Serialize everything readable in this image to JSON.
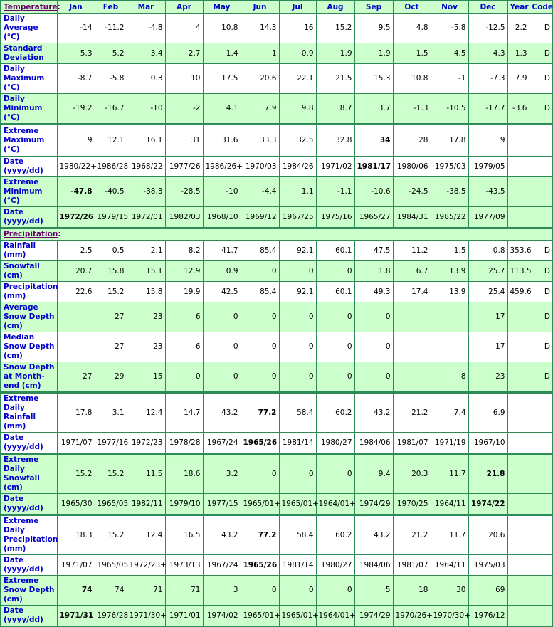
{
  "header": {
    "section_temperature": "Temperature",
    "section_precipitation": "Precipitation",
    "columns": [
      "Jan",
      "Feb",
      "Mar",
      "Apr",
      "May",
      "Jun",
      "Jul",
      "Aug",
      "Sep",
      "Oct",
      "Nov",
      "Dec",
      "Year",
      "Code"
    ]
  },
  "colors": {
    "border": "#2e8b57",
    "row_green": "#ccffcc",
    "row_white": "#ffffff",
    "label_blue": "#0000cc",
    "section_purple": "#660066"
  },
  "temperature": [
    {
      "label": "Daily Average (°C)",
      "values": [
        "-14",
        "-11.2",
        "-4.8",
        "4",
        "10.8",
        "14.3",
        "16",
        "15.2",
        "9.5",
        "4.8",
        "-5.8",
        "-12.5",
        "2.2",
        "D"
      ],
      "bold": []
    },
    {
      "label": "Standard Deviation",
      "values": [
        "5.3",
        "5.2",
        "3.4",
        "2.7",
        "1.4",
        "1",
        "0.9",
        "1.9",
        "1.9",
        "1.5",
        "4.5",
        "4.3",
        "1.3",
        "D"
      ],
      "bold": []
    },
    {
      "label": "Daily Maximum (°C)",
      "values": [
        "-8.7",
        "-5.8",
        "0.3",
        "10",
        "17.5",
        "20.6",
        "22.1",
        "21.5",
        "15.3",
        "10.8",
        "-1",
        "-7.3",
        "7.9",
        "D"
      ],
      "bold": []
    },
    {
      "label": "Daily Minimum (°C)",
      "values": [
        "-19.2",
        "-16.7",
        "-10",
        "-2",
        "4.1",
        "7.9",
        "9.8",
        "8.7",
        "3.7",
        "-1.3",
        "-10.5",
        "-17.7",
        "-3.6",
        "D"
      ],
      "bold": []
    },
    {
      "label": "Extreme Maximum (°C)",
      "values": [
        "9",
        "12.1",
        "16.1",
        "31",
        "31.6",
        "33.3",
        "32.5",
        "32.8",
        "34",
        "28",
        "17.8",
        "9",
        "",
        ""
      ],
      "bold": [
        8
      ]
    },
    {
      "label": "Date (yyyy/dd)",
      "values": [
        "1980/22+",
        "1986/28",
        "1968/22",
        "1977/26",
        "1986/26+",
        "1970/03",
        "1984/26",
        "1971/02",
        "1981/17",
        "1980/06",
        "1975/03",
        "1979/05",
        "",
        ""
      ],
      "bold": [
        8
      ]
    },
    {
      "label": "Extreme Minimum (°C)",
      "values": [
        "-47.8",
        "-40.5",
        "-38.3",
        "-28.5",
        "-10",
        "-4.4",
        "1.1",
        "-1.1",
        "-10.6",
        "-24.5",
        "-38.5",
        "-43.5",
        "",
        ""
      ],
      "bold": [
        0
      ]
    },
    {
      "label": "Date (yyyy/dd)",
      "values": [
        "1972/26",
        "1979/15",
        "1972/01",
        "1982/03",
        "1968/10",
        "1969/12",
        "1967/25",
        "1975/16",
        "1965/27",
        "1984/31",
        "1985/22",
        "1977/09",
        "",
        ""
      ],
      "bold": [
        0
      ]
    }
  ],
  "precipitation": [
    {
      "label": "Rainfall (mm)",
      "values": [
        "2.5",
        "0.5",
        "2.1",
        "8.2",
        "41.7",
        "85.4",
        "92.1",
        "60.1",
        "47.5",
        "11.2",
        "1.5",
        "0.8",
        "353.6",
        "D"
      ],
      "bold": []
    },
    {
      "label": "Snowfall (cm)",
      "values": [
        "20.7",
        "15.8",
        "15.1",
        "12.9",
        "0.9",
        "0",
        "0",
        "0",
        "1.8",
        "6.7",
        "13.9",
        "25.7",
        "113.5",
        "D"
      ],
      "bold": []
    },
    {
      "label": "Precipitation (mm)",
      "values": [
        "22.6",
        "15.2",
        "15.8",
        "19.9",
        "42.5",
        "85.4",
        "92.1",
        "60.1",
        "49.3",
        "17.4",
        "13.9",
        "25.4",
        "459.6",
        "D"
      ],
      "bold": []
    },
    {
      "label": "Average Snow Depth (cm)",
      "values": [
        "",
        "27",
        "23",
        "6",
        "0",
        "0",
        "0",
        "0",
        "0",
        "",
        "",
        "17",
        "",
        "D"
      ],
      "bold": []
    },
    {
      "label": "Median Snow Depth (cm)",
      "values": [
        "",
        "27",
        "23",
        "6",
        "0",
        "0",
        "0",
        "0",
        "0",
        "",
        "",
        "17",
        "",
        "D"
      ],
      "bold": []
    },
    {
      "label": "Snow Depth at Month-end (cm)",
      "values": [
        "27",
        "29",
        "15",
        "0",
        "0",
        "0",
        "0",
        "0",
        "0",
        "",
        "8",
        "23",
        "",
        "D"
      ],
      "bold": []
    },
    {
      "label": "Extreme Daily Rainfall (mm)",
      "values": [
        "17.8",
        "3.1",
        "12.4",
        "14.7",
        "43.2",
        "77.2",
        "58.4",
        "60.2",
        "43.2",
        "21.2",
        "7.4",
        "6.9",
        "",
        ""
      ],
      "bold": [
        5
      ]
    },
    {
      "label": "Date (yyyy/dd)",
      "values": [
        "1971/07",
        "1977/16",
        "1972/23",
        "1978/28",
        "1967/24",
        "1965/26",
        "1981/14",
        "1980/27",
        "1984/06",
        "1981/07",
        "1971/19",
        "1967/10",
        "",
        ""
      ],
      "bold": [
        5
      ]
    },
    {
      "label": "Extreme Daily Snowfall (cm)",
      "values": [
        "15.2",
        "15.2",
        "11.5",
        "18.6",
        "3.2",
        "0",
        "0",
        "0",
        "9.4",
        "20.3",
        "11.7",
        "21.8",
        "",
        ""
      ],
      "bold": [
        11
      ]
    },
    {
      "label": "Date (yyyy/dd)",
      "values": [
        "1965/30",
        "1965/05",
        "1982/11",
        "1979/10",
        "1977/15",
        "1965/01+",
        "1965/01+",
        "1964/01+",
        "1974/29",
        "1970/25",
        "1964/11",
        "1974/22",
        "",
        ""
      ],
      "bold": [
        11
      ]
    },
    {
      "label": "Extreme Daily Precipitation (mm)",
      "values": [
        "18.3",
        "15.2",
        "12.4",
        "16.5",
        "43.2",
        "77.2",
        "58.4",
        "60.2",
        "43.2",
        "21.2",
        "11.7",
        "20.6",
        "",
        ""
      ],
      "bold": [
        5
      ]
    },
    {
      "label": "Date (yyyy/dd)",
      "values": [
        "1971/07",
        "1965/05",
        "1972/23+",
        "1973/13",
        "1967/24",
        "1965/26",
        "1981/14",
        "1980/27",
        "1984/06",
        "1981/07",
        "1964/11",
        "1975/03",
        "",
        ""
      ],
      "bold": [
        5
      ]
    },
    {
      "label": "Extreme Snow Depth (cm)",
      "values": [
        "74",
        "74",
        "71",
        "71",
        "3",
        "0",
        "0",
        "0",
        "5",
        "18",
        "30",
        "69",
        "",
        ""
      ],
      "bold": [
        0
      ]
    },
    {
      "label": "Date (yyyy/dd)",
      "values": [
        "1971/31",
        "1976/28",
        "1971/30+",
        "1971/01",
        "1974/02",
        "1965/01+",
        "1965/01+",
        "1964/01+",
        "1974/29",
        "1970/26+",
        "1970/30+",
        "1976/12",
        "",
        ""
      ],
      "bold": [
        0
      ]
    }
  ],
  "layout": {
    "temp_row_styles": [
      "w",
      "g",
      "w",
      "g",
      "w thick",
      "w",
      "g",
      "g"
    ],
    "temp_row_heights": [
      33,
      28,
      41,
      41,
      45,
      28,
      41,
      28
    ],
    "precip_row_styles": [
      "w",
      "g",
      "w",
      "g",
      "w",
      "g",
      "w thick",
      "w",
      "g thick",
      "g",
      "w thick",
      "w",
      "g",
      "g"
    ],
    "precip_row_heights": [
      16,
      28,
      28,
      41,
      28,
      41,
      28,
      28,
      41,
      28,
      41,
      28,
      41,
      28
    ]
  }
}
